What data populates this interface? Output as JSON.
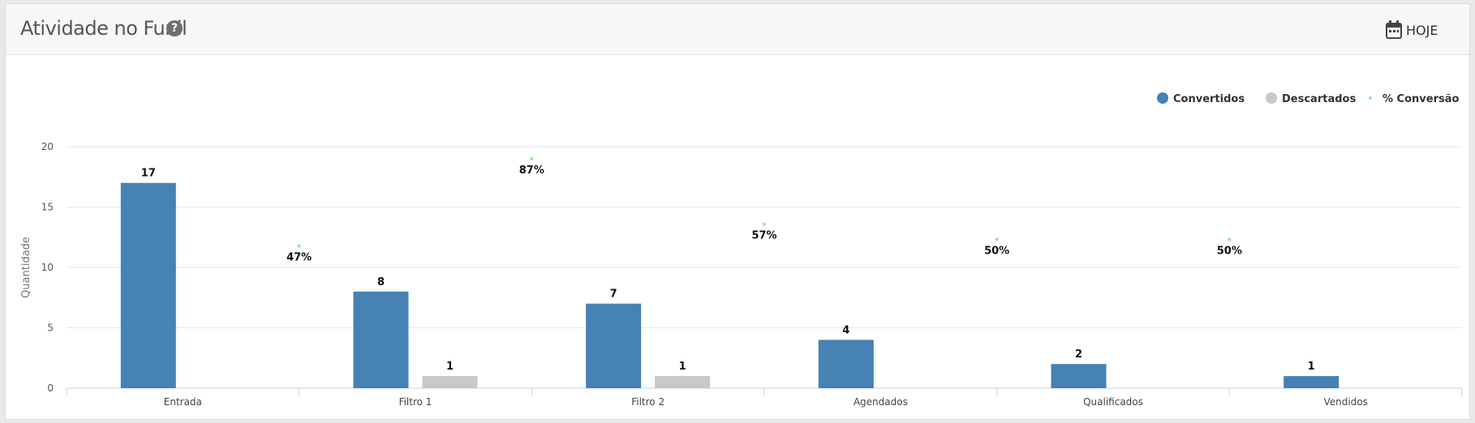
{
  "header": {
    "title": "Atividade no Funil",
    "help_icon": "?",
    "today_label": "HOJE"
  },
  "colors": {
    "convertidos": "#4682b4",
    "descartados": "#c8c8c8",
    "conversao": "#8cf08c"
  },
  "chart_data": {
    "type": "bar",
    "title": "",
    "xlabel": "",
    "ylabel": "Quantidade",
    "ylim": [
      0,
      20
    ],
    "yticks": [
      0,
      5,
      10,
      15,
      20
    ],
    "grid": true,
    "legend_position": "top-right",
    "categories": [
      "Entrada",
      "Filtro 1",
      "Filtro 2",
      "Agendados",
      "Qualificados",
      "Vendidos"
    ],
    "series": [
      {
        "name": "Convertidos",
        "kind": "bar",
        "values": [
          17,
          8,
          7,
          4,
          2,
          1
        ],
        "labels": [
          "17",
          "8",
          "7",
          "4",
          "2",
          "1"
        ]
      },
      {
        "name": "Descartados",
        "kind": "bar",
        "values": [
          0,
          1,
          1,
          0,
          0,
          0
        ],
        "labels": [
          "",
          "1",
          "1",
          "",
          "",
          ""
        ]
      },
      {
        "name": "% Conversão",
        "kind": "scatter",
        "values": [
          47,
          87,
          57,
          50,
          50
        ],
        "labels": [
          "47%",
          "87%",
          "57%",
          "50%",
          "50%"
        ]
      }
    ]
  }
}
